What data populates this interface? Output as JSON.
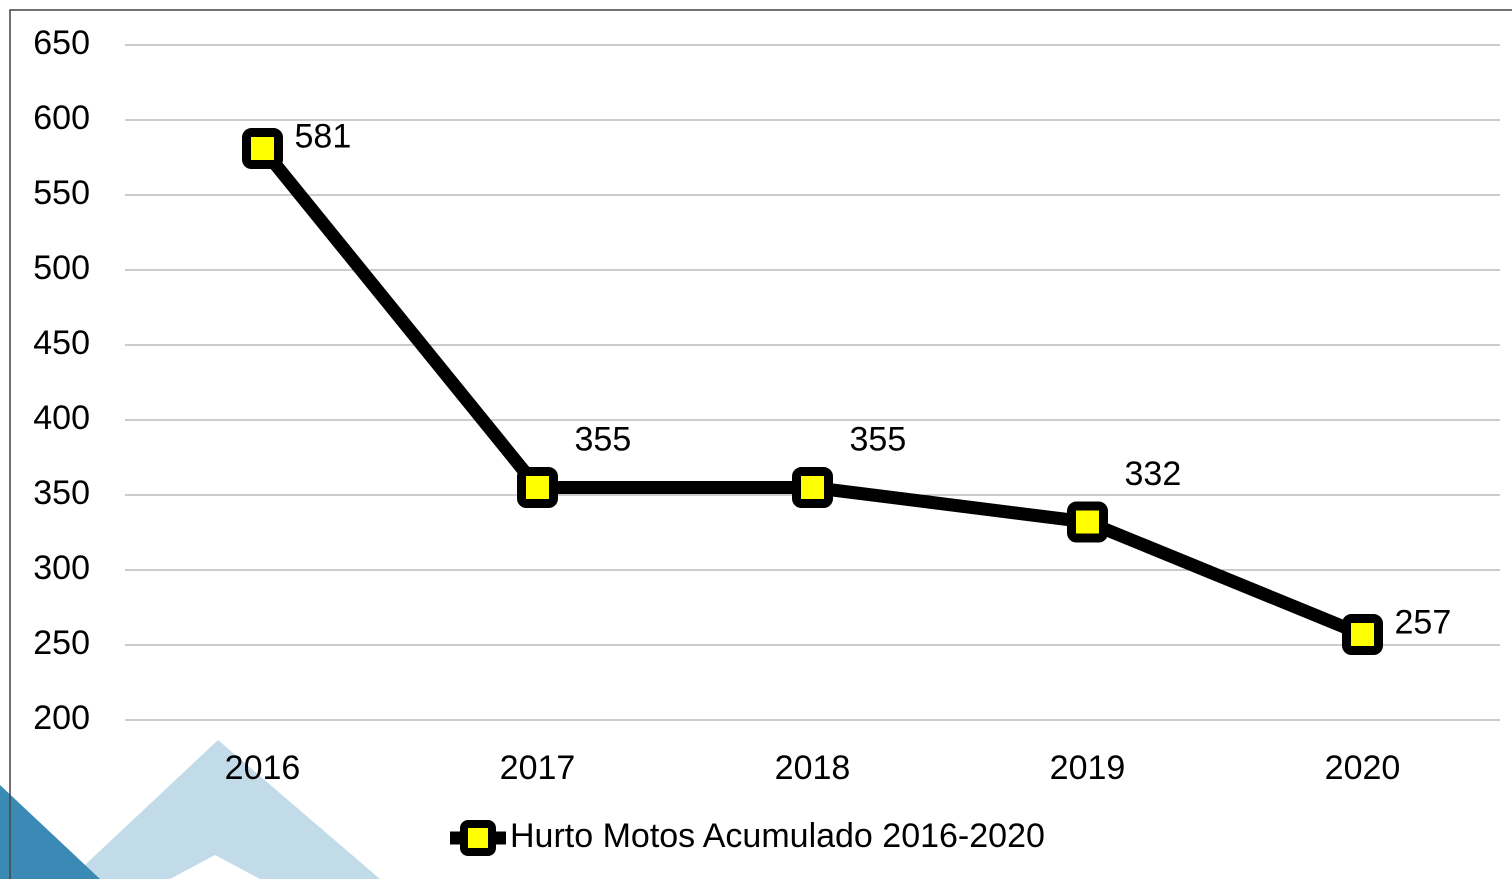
{
  "chart_data": {
    "type": "line",
    "categories": [
      "2016",
      "2017",
      "2018",
      "2019",
      "2020"
    ],
    "series": [
      {
        "name": "Hurto Motos Acumulado 2016-2020",
        "color": "#000000",
        "marker_color": "#ffff00",
        "values": [
          581,
          355,
          355,
          332,
          257
        ]
      }
    ],
    "ylim": [
      200,
      650
    ],
    "yticks": [
      200,
      250,
      300,
      350,
      400,
      450,
      500,
      550,
      600,
      650
    ],
    "grid": true,
    "legend": "bottom"
  }
}
